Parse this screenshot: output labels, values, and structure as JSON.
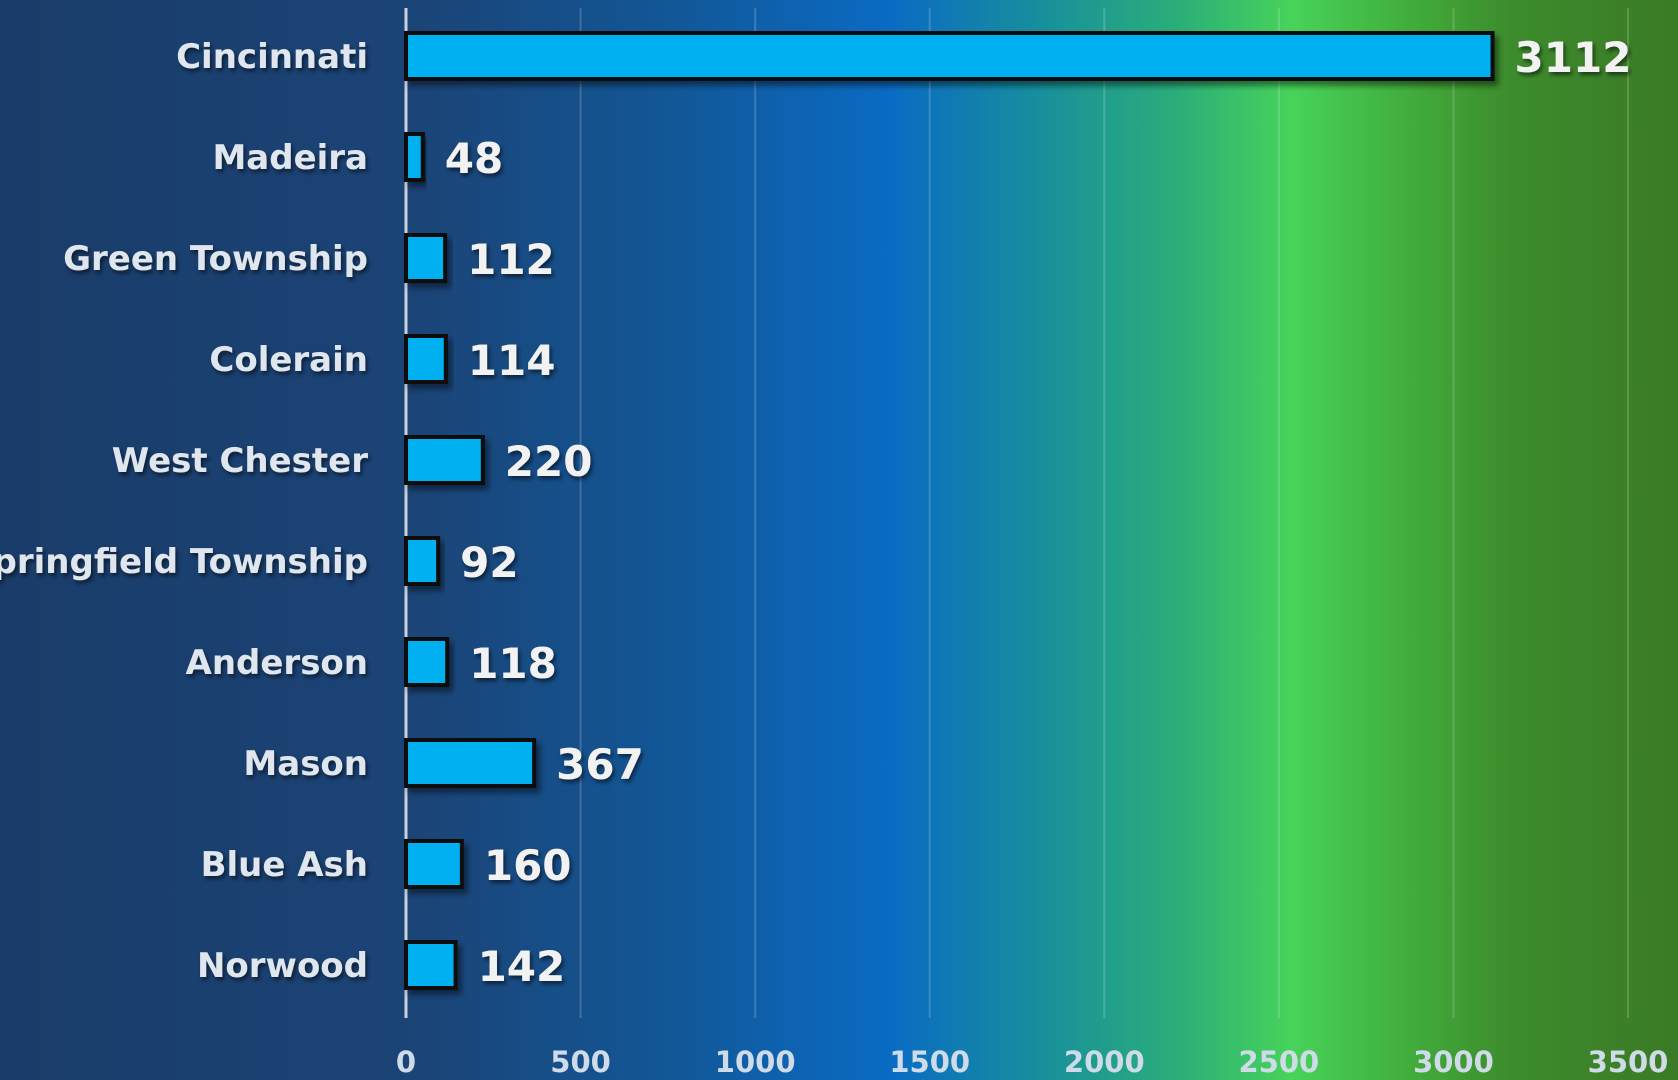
{
  "chart_data": {
    "type": "bar",
    "orientation": "horizontal",
    "title": "",
    "xlabel": "",
    "ylabel": "",
    "categories": [
      "Cincinnati",
      "Madeira",
      "Green Township",
      "Colerain",
      "West Chester",
      "Springfield Township",
      "Anderson",
      "Mason",
      "Blue Ash",
      "Norwood"
    ],
    "values": [
      3112,
      48,
      112,
      114,
      220,
      92,
      118,
      367,
      160,
      142
    ],
    "value_labels": [
      "3112",
      "48",
      "112",
      "114",
      "220",
      "92",
      "118",
      "367",
      "160",
      "142"
    ],
    "xlim": [
      0,
      3500
    ],
    "x_ticks": [
      "0",
      "500",
      "1000",
      "1500",
      "2000",
      "2500",
      "3000",
      "3500"
    ],
    "grid": true,
    "legend": "none",
    "colors": {
      "bar_fill": "#03b0f0",
      "bar_outline": "#0b0b0b",
      "background_left": "#1a3c69",
      "background_mid": "#0a6bc4",
      "background_green": "#47d35a",
      "background_right": "#3a7a26"
    }
  }
}
